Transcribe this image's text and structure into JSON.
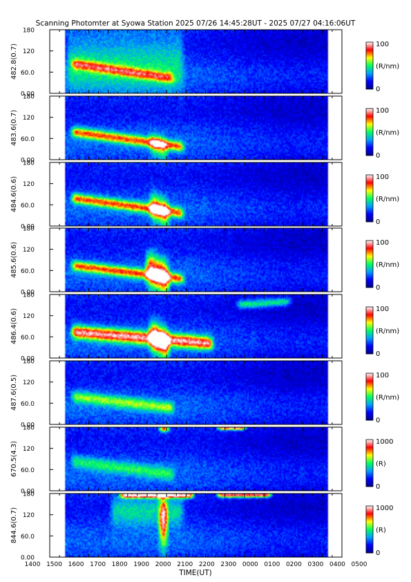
{
  "chart_data": {
    "type": "heatmap",
    "title": "Scanning Photomter at Syowa Station  2025 07/26 14:45:28UT - 2025 07/27 04:16:06UT",
    "xlabel": "TIME(UT)",
    "xlim": [
      1400,
      500
    ],
    "x_tick_labels": [
      "1400",
      "1500",
      "1600",
      "1700",
      "1800",
      "1900",
      "2000",
      "2100",
      "2200",
      "2300",
      "0000",
      "0100",
      "0200",
      "0300",
      "0400",
      "0500"
    ],
    "y_tick_labels": [
      "0.00",
      "60.0",
      "120",
      "180"
    ],
    "ylim": [
      0,
      180
    ],
    "data_start": "14:45:28",
    "data_end": "04:16:06",
    "grid": false,
    "colormap": [
      "#00008b",
      "#0000ff",
      "#00a0ff",
      "#00ff60",
      "#ffff00",
      "#ff0000",
      "#ffffff"
    ],
    "panels": [
      {
        "ylabel": "482.8(0.7)",
        "cbar_max": "100",
        "cbar_min": "0",
        "cbar_unit": "(R/nm)",
        "cmax": 100,
        "features": [
          {
            "label": "diffuse arc",
            "t_start": "15:00",
            "t_end": "20:30",
            "elev_start": 85,
            "elev_end": 40,
            "peak": 45,
            "width": 14
          },
          {
            "label": "background",
            "t_start": "14:45",
            "t_end": "21:00",
            "elev_start": 90,
            "elev_end": 90,
            "peak": 22,
            "width": 90
          }
        ]
      },
      {
        "ylabel": "483.6(0.7)",
        "cbar_max": "100",
        "cbar_min": "0",
        "cbar_unit": "(R/nm)",
        "cmax": 100,
        "features": [
          {
            "label": "diffuse arc",
            "t_start": "15:00",
            "t_end": "21:00",
            "elev_start": 80,
            "elev_end": 35,
            "peak": 55,
            "width": 14
          },
          {
            "label": "enhancement",
            "t_start": "19:00",
            "t_end": "20:10",
            "elev_start": 50,
            "elev_end": 25,
            "peak": 35,
            "width": 30
          }
        ]
      },
      {
        "ylabel": "484.6(0.6)",
        "cbar_max": "100",
        "cbar_min": "0",
        "cbar_unit": "(R/nm)",
        "cmax": 100,
        "features": [
          {
            "label": "diffuse arc",
            "t_start": "15:00",
            "t_end": "21:00",
            "elev_start": 80,
            "elev_end": 35,
            "peak": 55,
            "width": 14
          },
          {
            "label": "enhancement",
            "t_start": "19:00",
            "t_end": "20:15",
            "elev_start": 60,
            "elev_end": 30,
            "peak": 55,
            "width": 35
          }
        ]
      },
      {
        "ylabel": "485.6(0.6)",
        "cbar_max": "100",
        "cbar_min": "0",
        "cbar_unit": "(R/nm)",
        "cmax": 100,
        "features": [
          {
            "label": "diffuse arc",
            "t_start": "15:00",
            "t_end": "21:00",
            "elev_start": 75,
            "elev_end": 35,
            "peak": 55,
            "width": 14
          },
          {
            "label": "enhancement",
            "t_start": "18:50",
            "t_end": "20:15",
            "elev_start": 70,
            "elev_end": 30,
            "peak": 70,
            "width": 45
          }
        ]
      },
      {
        "ylabel": "486.4(0.6)",
        "cbar_max": "100",
        "cbar_min": "0",
        "cbar_unit": "(R/nm)",
        "cmax": 100,
        "features": [
          {
            "label": "diffuse arc",
            "t_start": "15:00",
            "t_end": "22:30",
            "elev_start": 75,
            "elev_end": 40,
            "peak": 70,
            "width": 18
          },
          {
            "label": "enhancement",
            "t_start": "19:00",
            "t_end": "20:15",
            "elev_start": 70,
            "elev_end": 30,
            "peak": 75,
            "width": 40
          },
          {
            "label": "high elevation arc",
            "t_start": "23:30",
            "t_end": "02:30",
            "elev_start": 150,
            "elev_end": 160,
            "peak": 35,
            "width": 12
          }
        ]
      },
      {
        "ylabel": "487.6(0.5)",
        "cbar_max": "100",
        "cbar_min": "0",
        "cbar_unit": "(R/nm)",
        "cmax": 100,
        "features": [
          {
            "label": "diffuse arc",
            "t_start": "15:00",
            "t_end": "20:30",
            "elev_start": 80,
            "elev_end": 45,
            "peak": 35,
            "width": 16
          }
        ]
      },
      {
        "ylabel": "670.5(4.3)",
        "cbar_max": "1000",
        "cbar_min": "0",
        "cbar_unit": "(R)",
        "cmax": 1000,
        "features": [
          {
            "label": "diffuse arc",
            "t_start": "15:00",
            "t_end": "20:30",
            "elev_start": 85,
            "elev_end": 45,
            "peak": 250,
            "width": 18
          },
          {
            "label": "horizon glow",
            "t_start": "19:30",
            "t_end": "20:15",
            "elev_start": 175,
            "elev_end": 175,
            "peak": 650,
            "width": 8
          },
          {
            "label": "horizon glow",
            "t_start": "22:30",
            "t_end": "00:10",
            "elev_start": 178,
            "elev_end": 178,
            "peak": 750,
            "width": 6
          }
        ]
      },
      {
        "ylabel": "844.6(0.7)",
        "cbar_max": "1000",
        "cbar_min": "0",
        "cbar_unit": "(R)",
        "cmax": 1000,
        "features": [
          {
            "label": "upper edge glow",
            "t_start": "17:30",
            "t_end": "21:30",
            "elev_start": 175,
            "elev_end": 175,
            "peak": 850,
            "width": 8
          },
          {
            "label": "upper edge glow",
            "t_start": "22:30",
            "t_end": "01:30",
            "elev_start": 176,
            "elev_end": 176,
            "peak": 800,
            "width": 7
          },
          {
            "label": "vertical enhancement",
            "t_start": "19:30",
            "t_end": "20:10",
            "elev_start": 100,
            "elev_end": 100,
            "peak": 700,
            "width": 70
          },
          {
            "label": "diffuse background",
            "t_start": "17:00",
            "t_end": "21:00",
            "elev_start": 130,
            "elev_end": 130,
            "peak": 260,
            "width": 40
          }
        ]
      }
    ]
  }
}
